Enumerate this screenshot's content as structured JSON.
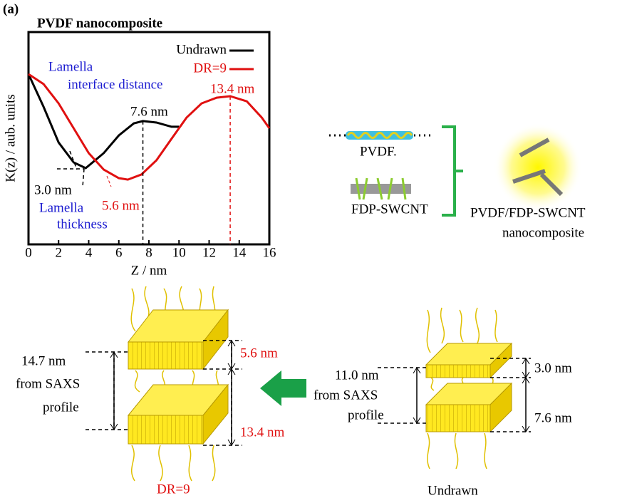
{
  "label": "(a)",
  "chart_data": {
    "type": "line",
    "title": "PVDF nanocomposite",
    "xlabel": "Z / nm",
    "ylabel": "K(z) / aub. units",
    "xlim": [
      0,
      16
    ],
    "xticks": [
      0,
      2,
      4,
      6,
      8,
      10,
      12,
      14,
      16
    ],
    "ylim": [
      0,
      1
    ],
    "series": [
      {
        "name": "Undrawn",
        "color": "#000000",
        "x": [
          0,
          1,
          2,
          3,
          3.8,
          5,
          6,
          7,
          7.6,
          8.5,
          9.5,
          10
        ],
        "values": [
          0.802,
          0.648,
          0.48,
          0.386,
          0.359,
          0.43,
          0.513,
          0.57,
          0.581,
          0.574,
          0.554,
          0.554
        ]
      },
      {
        "name": "DR=9",
        "color": "#e01010",
        "x": [
          0,
          1,
          2,
          3,
          4,
          5,
          6,
          6.6,
          7.5,
          8.5,
          9.5,
          10.5,
          11.5,
          12.5,
          13.4,
          14.5,
          15.5,
          16
        ],
        "values": [
          0.802,
          0.755,
          0.664,
          0.547,
          0.43,
          0.352,
          0.312,
          0.305,
          0.329,
          0.396,
          0.497,
          0.597,
          0.664,
          0.691,
          0.698,
          0.674,
          0.597,
          0.547
        ]
      }
    ],
    "annotations": [
      "Lamella",
      "interface distance",
      "13.4 nm",
      "7.6 nm",
      "3.0 nm",
      "Lamella",
      "5.6 nm",
      "thickness"
    ]
  },
  "schematic": {
    "polymer": "PVDF.",
    "filler": "FDP-SWCNT",
    "composite": [
      "PVDF/FDP-SWCNT",
      "nanocomposite"
    ]
  },
  "models": [
    {
      "caption": "DR=9",
      "long_period": [
        "14.7 nm",
        "from SAXS",
        "profile"
      ],
      "thickness": "5.6 nm",
      "spacing": "13.4 nm"
    },
    {
      "caption": "Undrawn",
      "long_period": [
        "11.0 nm",
        "from SAXS",
        "profile"
      ],
      "thickness": "3.0 nm",
      "spacing": "7.6 nm"
    }
  ]
}
